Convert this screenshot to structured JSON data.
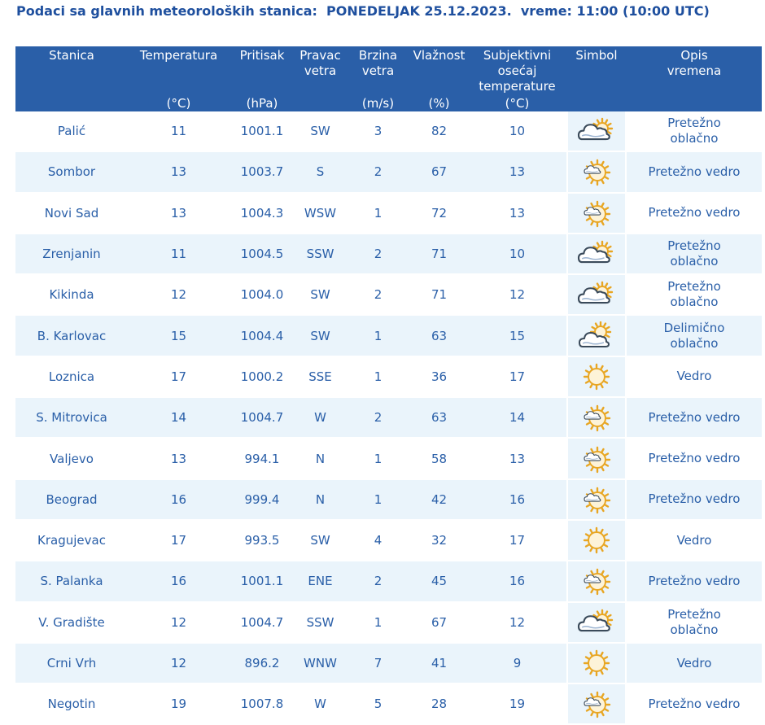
{
  "header": {
    "title": "Podaci sa glavnih meteoroloških stanica:  PONEDELJAK 25.12.2023.  vreme: 11:00 (10:00 UTC)"
  },
  "columns": [
    {
      "label": "Stanica",
      "unit": ""
    },
    {
      "label": "Temperatura",
      "unit": "(°C)"
    },
    {
      "label": "Pritisak",
      "unit": "(hPa)"
    },
    {
      "label": "Pravac\nvetra",
      "unit": ""
    },
    {
      "label": "Brzina\nvetra",
      "unit": "(m/s)"
    },
    {
      "label": "Vlažnost",
      "unit": "(%)"
    },
    {
      "label": "Subjektivni\nosećaj\ntemperature",
      "unit": "(°C)"
    },
    {
      "label": "Simbol",
      "unit": ""
    },
    {
      "label": "Opis\nvremena",
      "unit": ""
    }
  ],
  "colors": {
    "header_bg": "#2a5fa8",
    "text": "#2a5fa8",
    "feels": "#f0952a",
    "row_alt": "#eaf4fb"
  },
  "rows": [
    {
      "station": "Palić",
      "temp": "11",
      "pressure": "1001.1",
      "wind_dir": "SW",
      "wind_speed": "3",
      "humidity": "82",
      "feels": "10",
      "icon": "mostly-cloudy-icon",
      "desc": "Pretežno\noblačno"
    },
    {
      "station": "Sombor",
      "temp": "13",
      "pressure": "1003.7",
      "wind_dir": "S",
      "wind_speed": "2",
      "humidity": "67",
      "feels": "13",
      "icon": "mostly-sunny-icon",
      "desc": "Pretežno vedro"
    },
    {
      "station": "Novi Sad",
      "temp": "13",
      "pressure": "1004.3",
      "wind_dir": "WSW",
      "wind_speed": "1",
      "humidity": "72",
      "feels": "13",
      "icon": "mostly-sunny-icon",
      "desc": "Pretežno vedro"
    },
    {
      "station": "Zrenjanin",
      "temp": "11",
      "pressure": "1004.5",
      "wind_dir": "SSW",
      "wind_speed": "2",
      "humidity": "71",
      "feels": "10",
      "icon": "mostly-cloudy-icon",
      "desc": "Pretežno\noblačno"
    },
    {
      "station": "Kikinda",
      "temp": "12",
      "pressure": "1004.0",
      "wind_dir": "SW",
      "wind_speed": "2",
      "humidity": "71",
      "feels": "12",
      "icon": "mostly-cloudy-icon",
      "desc": "Pretežno\noblačno"
    },
    {
      "station": "B. Karlovac",
      "temp": "15",
      "pressure": "1004.4",
      "wind_dir": "SW",
      "wind_speed": "1",
      "humidity": "63",
      "feels": "15",
      "icon": "partly-cloudy-icon",
      "desc": "Delimično\noblačno"
    },
    {
      "station": "Loznica",
      "temp": "17",
      "pressure": "1000.2",
      "wind_dir": "SSE",
      "wind_speed": "1",
      "humidity": "36",
      "feels": "17",
      "icon": "sunny-icon",
      "desc": "Vedro"
    },
    {
      "station": "S. Mitrovica",
      "temp": "14",
      "pressure": "1004.7",
      "wind_dir": "W",
      "wind_speed": "2",
      "humidity": "63",
      "feels": "14",
      "icon": "mostly-sunny-icon",
      "desc": "Pretežno vedro"
    },
    {
      "station": "Valjevo",
      "temp": "13",
      "pressure": "994.1",
      "wind_dir": "N",
      "wind_speed": "1",
      "humidity": "58",
      "feels": "13",
      "icon": "mostly-sunny-icon",
      "desc": "Pretežno vedro"
    },
    {
      "station": "Beograd",
      "temp": "16",
      "pressure": "999.4",
      "wind_dir": "N",
      "wind_speed": "1",
      "humidity": "42",
      "feels": "16",
      "icon": "mostly-sunny-icon",
      "desc": "Pretežno vedro"
    },
    {
      "station": "Kragujevac",
      "temp": "17",
      "pressure": "993.5",
      "wind_dir": "SW",
      "wind_speed": "4",
      "humidity": "32",
      "feels": "17",
      "icon": "sunny-icon",
      "desc": "Vedro"
    },
    {
      "station": "S. Palanka",
      "temp": "16",
      "pressure": "1001.1",
      "wind_dir": "ENE",
      "wind_speed": "2",
      "humidity": "45",
      "feels": "16",
      "icon": "mostly-sunny-icon",
      "desc": "Pretežno vedro"
    },
    {
      "station": "V. Gradište",
      "temp": "12",
      "pressure": "1004.7",
      "wind_dir": "SSW",
      "wind_speed": "1",
      "humidity": "67",
      "feels": "12",
      "icon": "mostly-cloudy-icon",
      "desc": "Pretežno\noblačno"
    },
    {
      "station": "Crni Vrh",
      "temp": "12",
      "pressure": "896.2",
      "wind_dir": "WNW",
      "wind_speed": "7",
      "humidity": "41",
      "feels": "9",
      "icon": "sunny-icon",
      "desc": "Vedro"
    },
    {
      "station": "Negotin",
      "temp": "19",
      "pressure": "1007.8",
      "wind_dir": "W",
      "wind_speed": "5",
      "humidity": "28",
      "feels": "19",
      "icon": "mostly-sunny-icon",
      "desc": "Pretežno vedro"
    }
  ]
}
